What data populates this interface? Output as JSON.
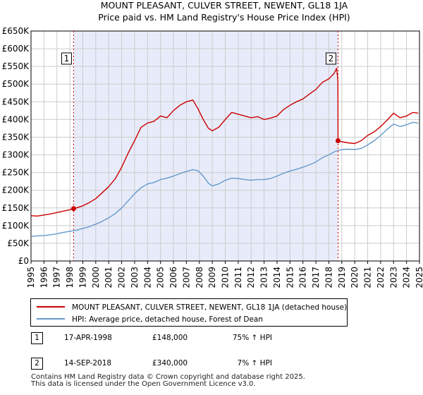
{
  "chart_data": {
    "type": "line",
    "title": "MOUNT PLEASANT, CULVER STREET, NEWENT, GL18 1JA",
    "subtitle": "Price paid vs. HM Land Registry's House Price Index (HPI)",
    "xlabel": "",
    "ylabel": "",
    "xlim": [
      1995,
      2025
    ],
    "ylim": [
      0,
      650000
    ],
    "y_ticks": [
      0,
      50000,
      100000,
      150000,
      200000,
      250000,
      300000,
      350000,
      400000,
      450000,
      500000,
      550000,
      600000,
      650000
    ],
    "y_tick_labels": [
      "£0",
      "£50K",
      "£100K",
      "£150K",
      "£200K",
      "£250K",
      "£300K",
      "£350K",
      "£400K",
      "£450K",
      "£500K",
      "£550K",
      "£600K",
      "£650K"
    ],
    "x_ticks": [
      1995,
      1996,
      1997,
      1998,
      1999,
      2000,
      2001,
      2002,
      2003,
      2004,
      2005,
      2006,
      2007,
      2008,
      2009,
      2010,
      2011,
      2012,
      2013,
      2014,
      2015,
      2016,
      2017,
      2018,
      2019,
      2020,
      2021,
      2022,
      2023,
      2024,
      2025
    ],
    "x_tick_labels": [
      "1995",
      "1996",
      "1997",
      "1998",
      "1999",
      "2000",
      "2001",
      "2002",
      "2003",
      "2004",
      "2005",
      "2006",
      "2007",
      "2008",
      "2009",
      "2010",
      "2011",
      "2012",
      "2013",
      "2014",
      "2015",
      "2016",
      "2017",
      "2018",
      "2019",
      "2020",
      "2021",
      "2022",
      "2023",
      "2024",
      "2025"
    ],
    "shaded_range": [
      1998.29,
      2018.71
    ],
    "series": [
      {
        "name": "MOUNT PLEASANT, CULVER STREET, NEWENT, GL18 1JA (detached house)",
        "color": "#cc0000",
        "x": [
          1995.0,
          1995.5,
          1996.0,
          1996.5,
          1997.0,
          1997.5,
          1998.0,
          1998.29,
          1998.5,
          1999.0,
          1999.5,
          2000.0,
          2000.5,
          2001.0,
          2001.5,
          2002.0,
          2002.5,
          2003.0,
          2003.5,
          2004.0,
          2004.5,
          2005.0,
          2005.5,
          2006.0,
          2006.5,
          2007.0,
          2007.5,
          2007.9,
          2008.3,
          2008.7,
          2009.0,
          2009.5,
          2010.0,
          2010.5,
          2011.0,
          2011.5,
          2012.0,
          2012.5,
          2013.0,
          2013.5,
          2014.0,
          2014.5,
          2015.0,
          2015.5,
          2016.0,
          2016.5,
          2017.0,
          2017.5,
          2018.0,
          2018.4,
          2018.6,
          2018.7,
          2018.71,
          2019.0,
          2019.5,
          2020.0,
          2020.5,
          2021.0,
          2021.5,
          2022.0,
          2022.5,
          2023.0,
          2023.5,
          2024.0,
          2024.5,
          2024.9
        ],
        "values": [
          128000,
          127000,
          130000,
          133000,
          137000,
          141000,
          145000,
          148000,
          150000,
          156000,
          165000,
          176000,
          193000,
          210000,
          232000,
          265000,
          305000,
          340000,
          378000,
          390000,
          395000,
          410000,
          405000,
          425000,
          440000,
          450000,
          455000,
          430000,
          400000,
          375000,
          368000,
          378000,
          400000,
          420000,
          415000,
          410000,
          405000,
          408000,
          400000,
          404000,
          410000,
          428000,
          440000,
          450000,
          458000,
          472000,
          485000,
          505000,
          515000,
          530000,
          545000,
          510000,
          340000,
          337000,
          334000,
          332000,
          340000,
          355000,
          365000,
          380000,
          398000,
          418000,
          405000,
          410000,
          420000,
          418000
        ]
      },
      {
        "name": "HPI: Average price, detached house, Forest of Dean",
        "color": "#6699cc",
        "x": [
          1995.0,
          1995.5,
          1996.0,
          1996.5,
          1997.0,
          1997.5,
          1998.0,
          1998.5,
          1999.0,
          1999.5,
          2000.0,
          2000.5,
          2001.0,
          2001.5,
          2002.0,
          2002.5,
          2003.0,
          2003.5,
          2004.0,
          2004.5,
          2005.0,
          2005.5,
          2006.0,
          2006.5,
          2007.0,
          2007.5,
          2007.9,
          2008.3,
          2008.7,
          2009.0,
          2009.5,
          2010.0,
          2010.5,
          2011.0,
          2011.5,
          2012.0,
          2012.5,
          2013.0,
          2013.5,
          2014.0,
          2014.5,
          2015.0,
          2015.5,
          2016.0,
          2016.5,
          2017.0,
          2017.5,
          2018.0,
          2018.5,
          2019.0,
          2019.5,
          2020.0,
          2020.5,
          2021.0,
          2021.5,
          2022.0,
          2022.5,
          2023.0,
          2023.5,
          2024.0,
          2024.5,
          2024.9
        ],
        "values": [
          70000,
          71000,
          72000,
          74000,
          77000,
          81000,
          84000,
          87000,
          92000,
          97000,
          104000,
          112000,
          122000,
          134000,
          150000,
          170000,
          190000,
          207000,
          218000,
          222000,
          230000,
          234000,
          240000,
          247000,
          253000,
          258000,
          255000,
          240000,
          220000,
          212000,
          218000,
          228000,
          234000,
          233000,
          230000,
          228000,
          230000,
          230000,
          233000,
          240000,
          248000,
          254000,
          259000,
          265000,
          272000,
          280000,
          292000,
          300000,
          310000,
          315000,
          316000,
          315000,
          318000,
          328000,
          340000,
          355000,
          372000,
          387000,
          380000,
          385000,
          392000,
          390000
        ]
      }
    ],
    "markers": [
      {
        "label": "1",
        "x": 1998.29,
        "value": 148000
      },
      {
        "label": "2",
        "x": 2018.71,
        "value": 340000
      }
    ]
  },
  "legend": {
    "items": [
      {
        "label": "MOUNT PLEASANT, CULVER STREET, NEWENT, GL18 1JA (detached house)",
        "color": "#cc0000"
      },
      {
        "label": "HPI: Average price, detached house, Forest of Dean",
        "color": "#6699cc"
      }
    ]
  },
  "annotations": [
    {
      "num": "1",
      "date": "17-APR-1998",
      "price": "£148,000",
      "hpi": "75% ↑ HPI"
    },
    {
      "num": "2",
      "date": "14-SEP-2018",
      "price": "£340,000",
      "hpi": "7% ↑ HPI"
    }
  ],
  "footer": {
    "line1": "Contains HM Land Registry data © Crown copyright and database right 2025.",
    "line2": "This data is licensed under the Open Government Licence v3.0."
  }
}
